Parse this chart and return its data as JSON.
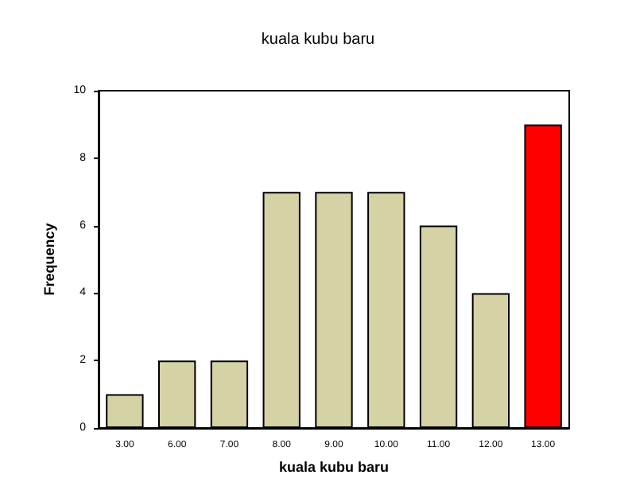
{
  "chart_data": {
    "type": "bar",
    "title": "kuala kubu baru",
    "xlabel": "kuala kubu baru",
    "ylabel": "Frequency",
    "categories": [
      "3.00",
      "6.00",
      "7.00",
      "8.00",
      "9.00",
      "10.00",
      "11.00",
      "12.00",
      "13.00"
    ],
    "values": [
      1,
      2,
      2,
      7,
      7,
      7,
      6,
      4,
      9
    ],
    "colors": [
      "#d5d2a5",
      "#d5d2a5",
      "#d5d2a5",
      "#d5d2a5",
      "#d5d2a5",
      "#d5d2a5",
      "#d5d2a5",
      "#d5d2a5",
      "#ff0000"
    ],
    "ylim": [
      0,
      10
    ],
    "yticks": [
      0,
      2,
      4,
      6,
      8,
      10
    ]
  }
}
